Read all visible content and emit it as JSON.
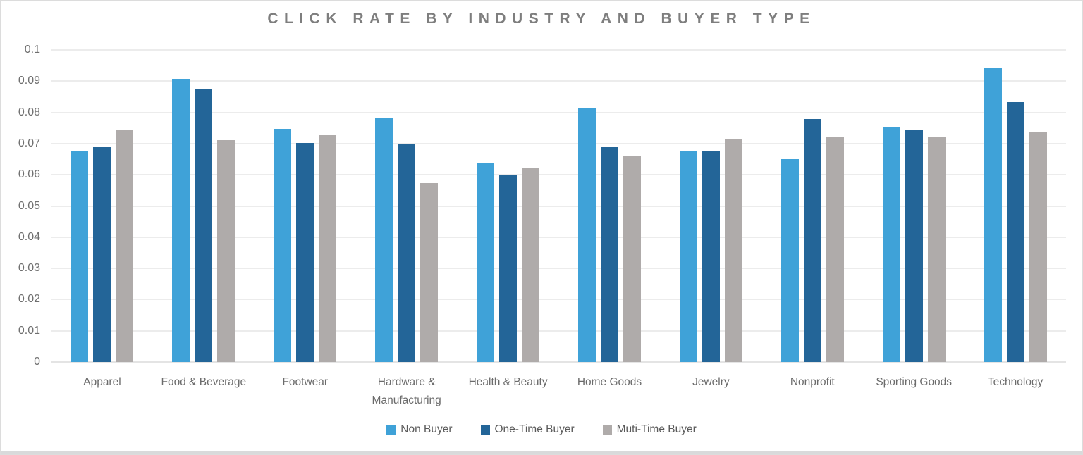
{
  "title": "CLICK RATE BY INDUSTRY AND BUYER TYPE",
  "colors": {
    "non_buyer": "#3FA2D8",
    "one_time_buyer": "#236598",
    "multi_time_buyer": "#AFABAA",
    "gridline": "#DADADA",
    "title_text": "#7E7E7E",
    "axis_text": "#6B6B6B",
    "legend_text": "#595959"
  },
  "chart_data": {
    "type": "bar",
    "title": "CLICK RATE BY INDUSTRY AND BUYER TYPE",
    "xlabel": "",
    "ylabel": "",
    "grid": true,
    "legend_position": "bottom",
    "ylim": [
      0,
      0.1
    ],
    "y_ticks": [
      "0.1",
      "0.09",
      "0.08",
      "0.07",
      "0.06",
      "0.05",
      "0.04",
      "0.03",
      "0.02",
      "0.01",
      "0"
    ],
    "categories": [
      "Apparel",
      "Food & Beverage",
      "Footwear",
      "Hardware & Manufacturing",
      "Health & Beauty",
      "Home Goods",
      "Jewelry",
      "Nonprofit",
      "Sporting Goods",
      "Technology"
    ],
    "series": [
      {
        "name": "Non Buyer",
        "color": "#3FA2D8",
        "values": [
          0.0678,
          0.0907,
          0.0748,
          0.0783,
          0.0638,
          0.0813,
          0.0678,
          0.065,
          0.0755,
          0.0942
        ]
      },
      {
        "name": "One-Time Buyer",
        "color": "#236598",
        "values": [
          0.0691,
          0.0876,
          0.0702,
          0.07,
          0.06,
          0.0688,
          0.0675,
          0.0778,
          0.0746,
          0.0833
        ]
      },
      {
        "name": "Muti-Time Buyer",
        "color": "#AFABAA",
        "values": [
          0.0744,
          0.0712,
          0.0728,
          0.0574,
          0.062,
          0.0662,
          0.0714,
          0.0723,
          0.0719,
          0.0737
        ]
      }
    ]
  }
}
